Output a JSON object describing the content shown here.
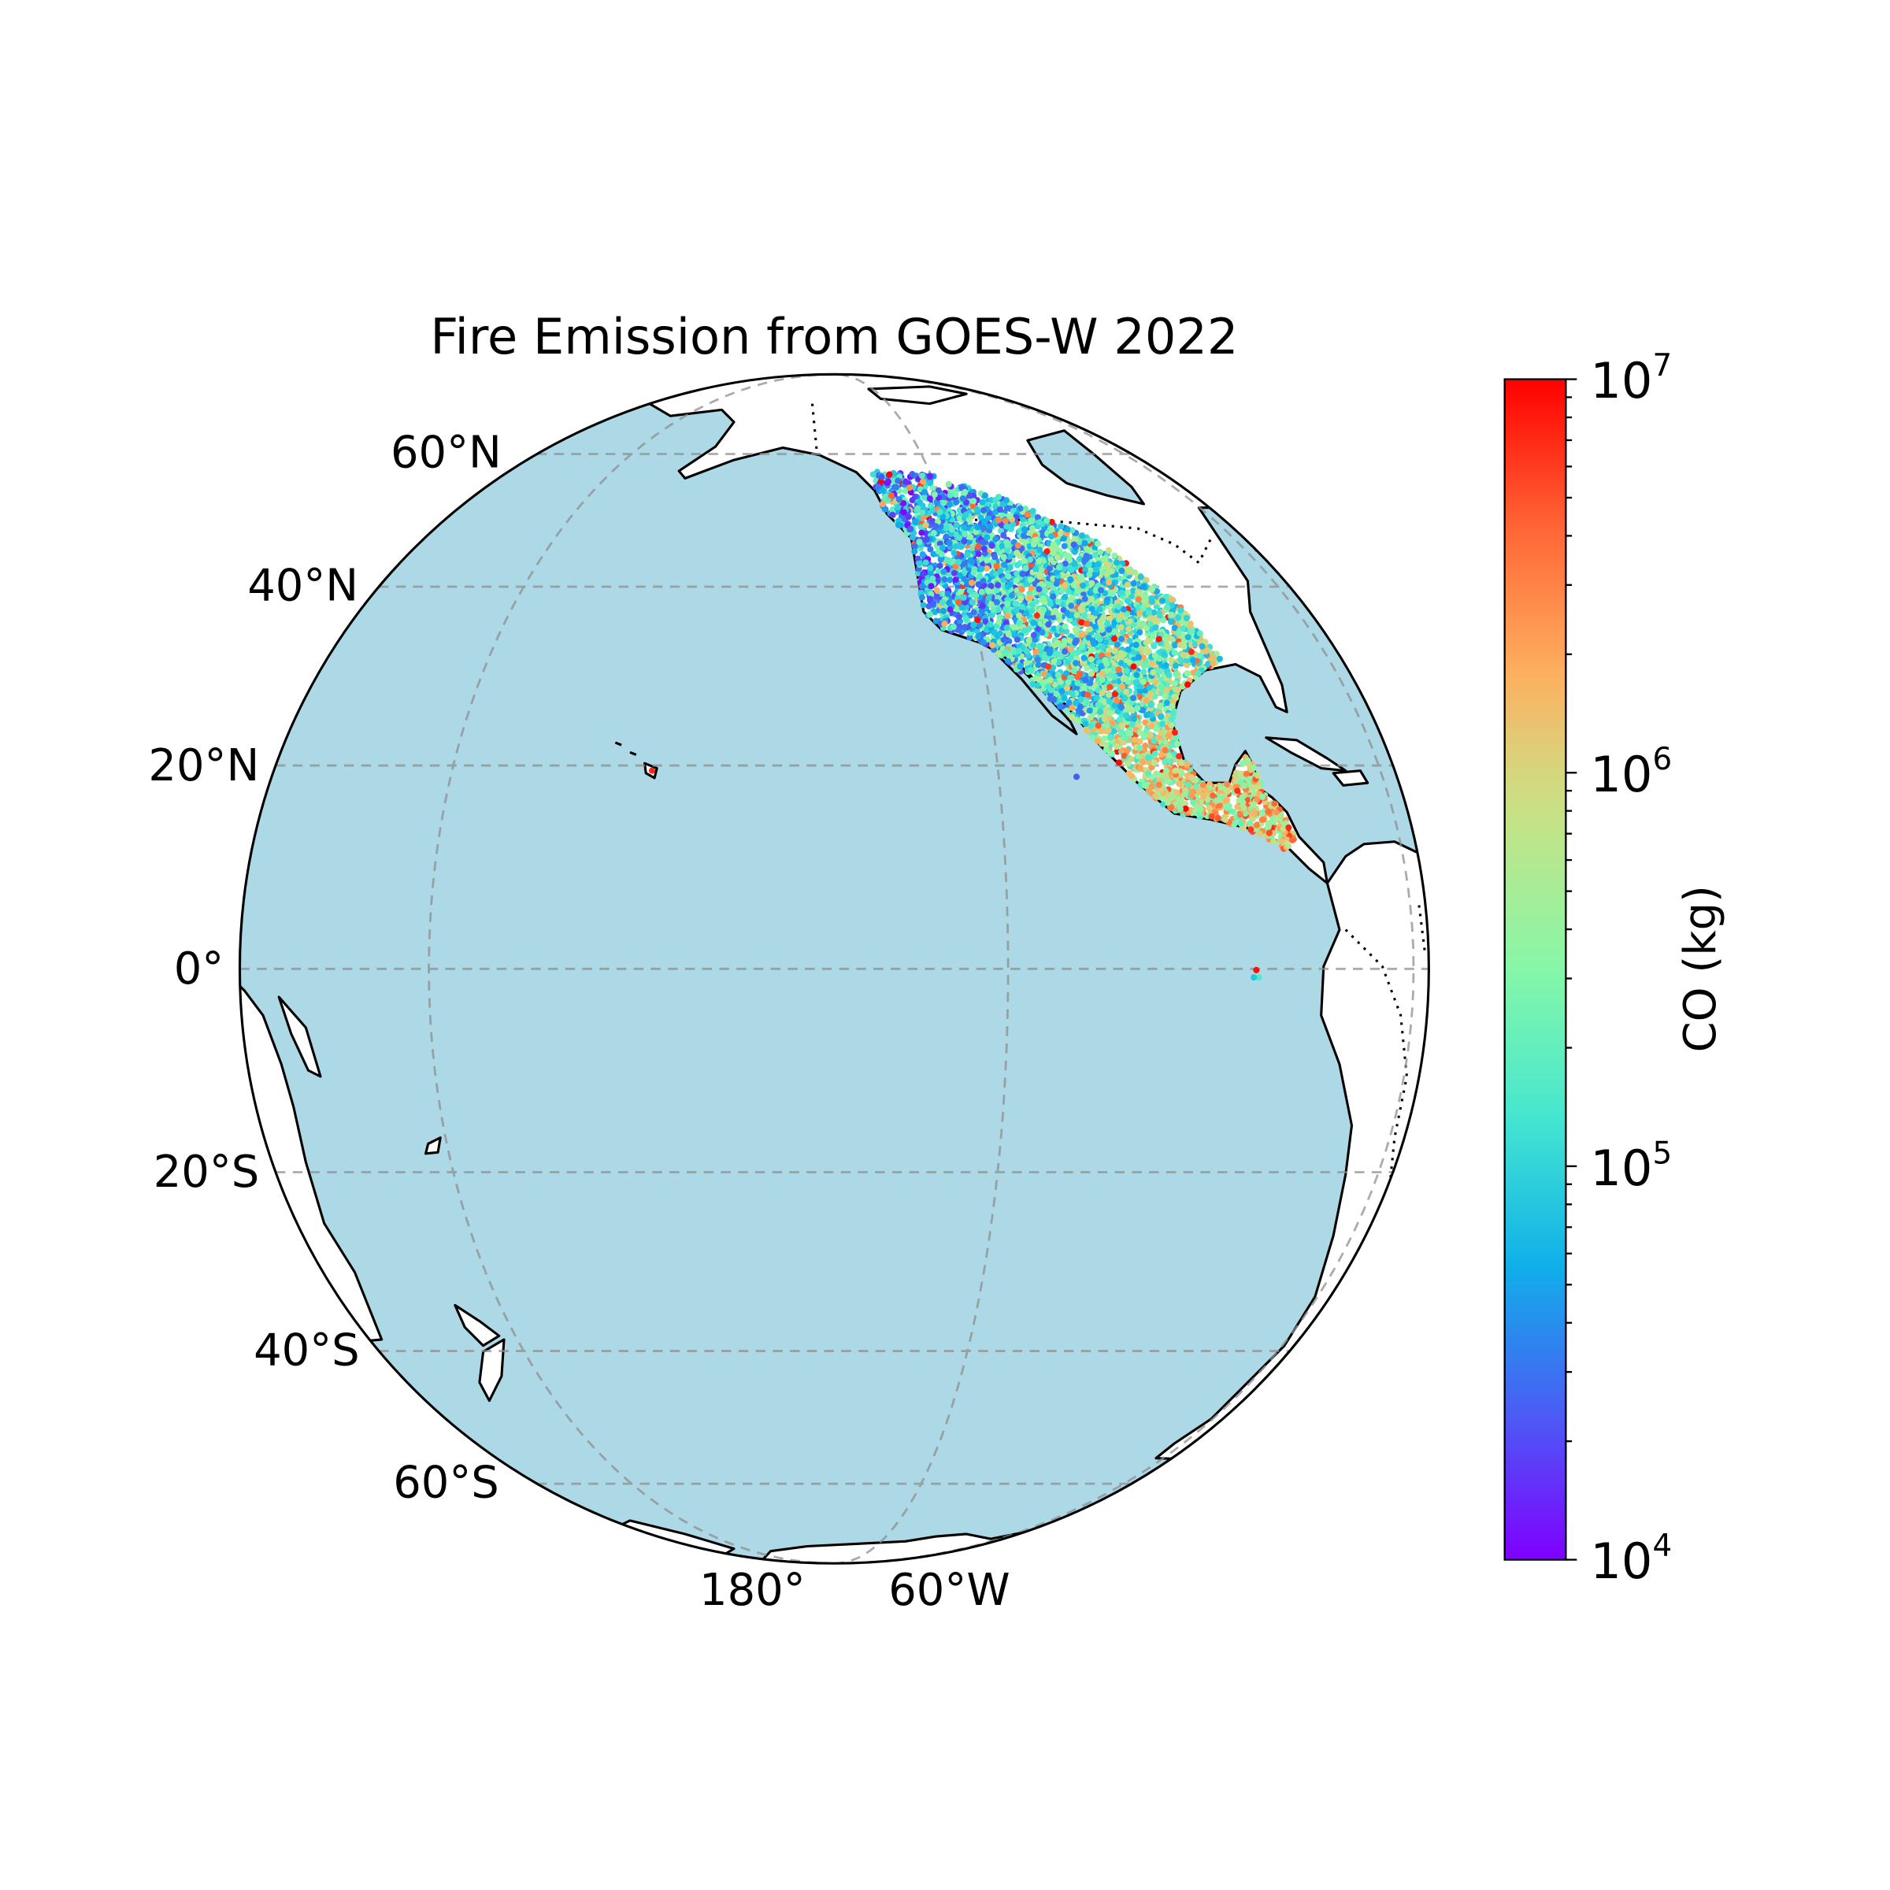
{
  "chart_data": {
    "type": "scatter",
    "title": "Fire Emission from GOES-W 2022",
    "projection": "orthographic",
    "central_longitude": -137,
    "central_latitude": 0,
    "ocean_color": "#add8e6",
    "land_color": "#ffffff",
    "gridlines": {
      "style": "dashed",
      "latitudes": [
        -60,
        -40,
        -20,
        0,
        20,
        40,
        60
      ],
      "longitudes": [
        180,
        -120,
        -60
      ],
      "lat_labels": [
        {
          "lat": 60,
          "text": "60°N"
        },
        {
          "lat": 40,
          "text": "40°N"
        },
        {
          "lat": 20,
          "text": "20°N"
        },
        {
          "lat": 0,
          "text": "0°"
        },
        {
          "lat": -20,
          "text": "20°S"
        },
        {
          "lat": -40,
          "text": "40°S"
        },
        {
          "lat": -60,
          "text": "60°S"
        }
      ],
      "lon_labels": [
        {
          "lon": 180,
          "text": "180°"
        },
        {
          "lon": -60,
          "text": "60°W"
        }
      ]
    },
    "color_variable": "CO emission per fire pixel",
    "colorbar": {
      "label": "CO (kg)",
      "scale": "log",
      "range": [
        10000,
        10000000
      ],
      "colormap": "rainbow",
      "ticks": [
        {
          "value": 10000,
          "base": "10",
          "exp": "4"
        },
        {
          "value": 100000,
          "base": "10",
          "exp": "5"
        },
        {
          "value": 1000000,
          "base": "10",
          "exp": "6"
        },
        {
          "value": 10000000,
          "base": "10",
          "exp": "7"
        }
      ]
    },
    "data_extent": "western North America, Mexico and Central America within the GOES-W view; isolated points near Hawaii and Galápagos"
  }
}
